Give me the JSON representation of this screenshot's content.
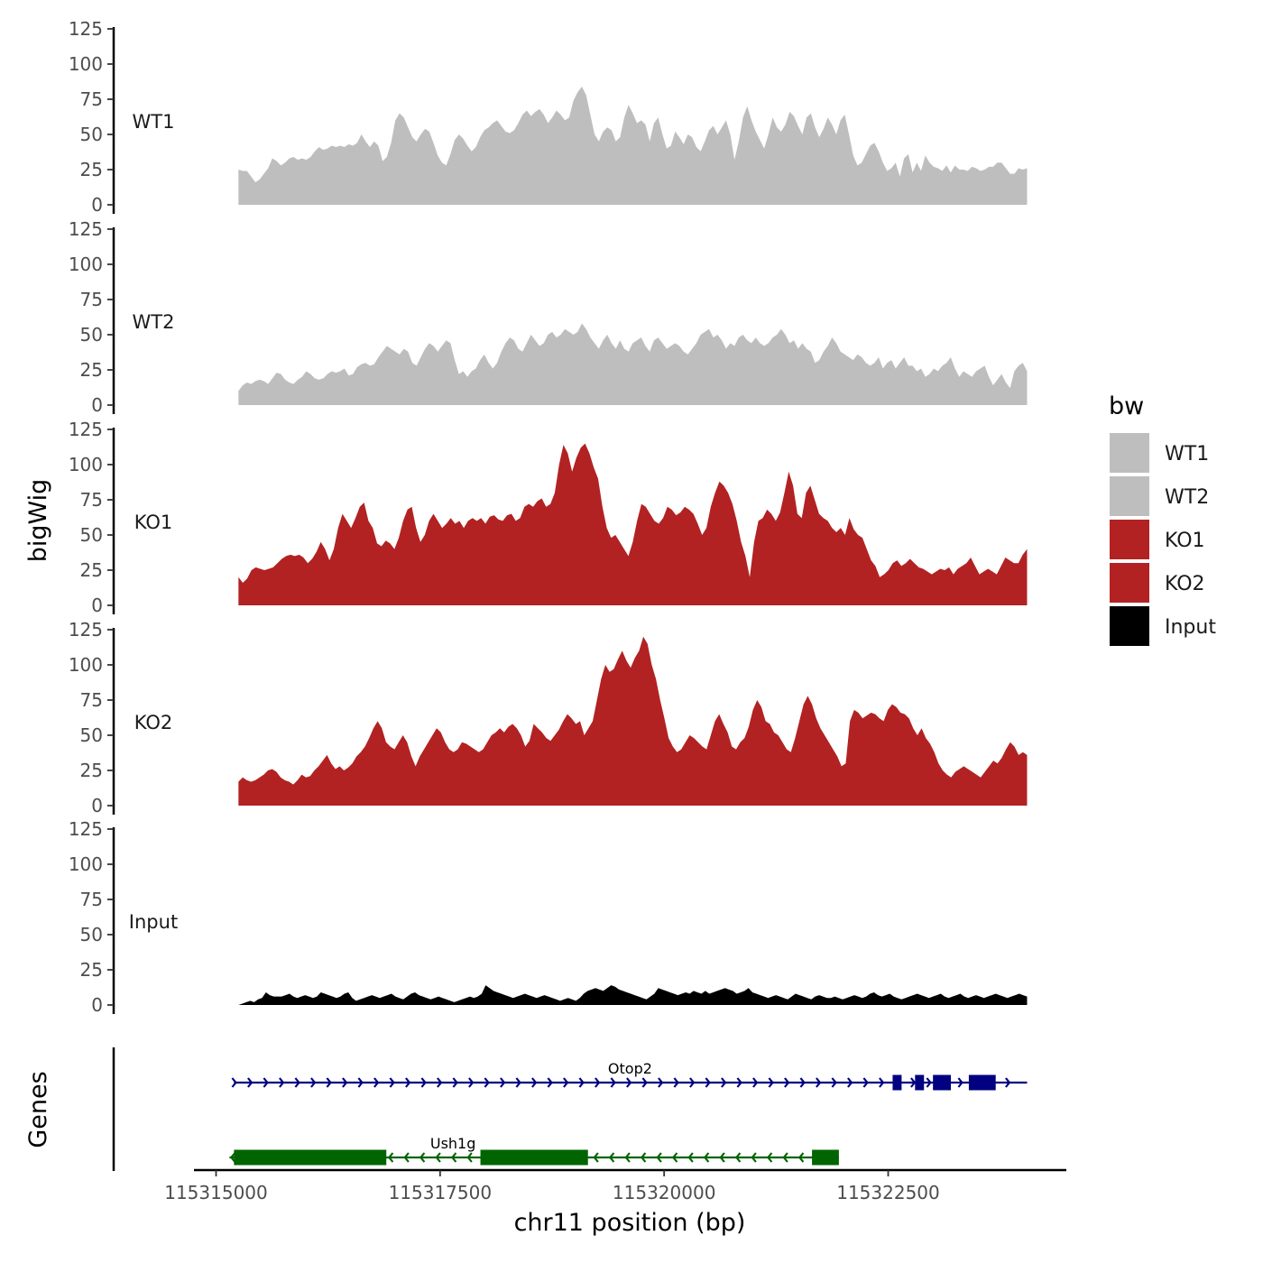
{
  "chart_data": {
    "type": "area",
    "chromosome": "chr11",
    "xlabel": "chr11 position (bp)",
    "ylabel": "bigWig",
    "genes_label": "Genes",
    "xlim": [
      115314500,
      115324200
    ],
    "region": [
      115315250,
      115324050
    ],
    "x_ticks": [
      115315000,
      115317500,
      115320000,
      115322500
    ],
    "x_tick_labels": [
      "115315000",
      "115317500",
      "115320000",
      "115322500"
    ],
    "ylim": [
      0,
      125
    ],
    "y_ticks": [
      0,
      25,
      50,
      75,
      100,
      125
    ],
    "y_tick_labels": [
      "0",
      "25",
      "50",
      "75",
      "100",
      "125"
    ],
    "legend": {
      "title": "bw",
      "entries": [
        {
          "label": "WT1",
          "color": "#BEBEBE"
        },
        {
          "label": "WT2",
          "color": "#BEBEBE"
        },
        {
          "label": "KO1",
          "color": "#B22222"
        },
        {
          "label": "KO2",
          "color": "#B22222"
        },
        {
          "label": "Input",
          "color": "#000000"
        }
      ]
    },
    "series": [
      {
        "name": "WT1",
        "color": "#BEBEBE",
        "values": [
          25,
          24,
          24,
          20,
          16,
          18,
          22,
          26,
          33,
          31,
          28,
          30,
          33,
          34,
          32,
          33,
          32,
          34,
          38,
          41,
          39,
          40,
          42,
          41,
          42,
          41,
          43,
          42,
          44,
          50,
          45,
          41,
          45,
          42,
          31,
          34,
          44,
          60,
          65,
          62,
          55,
          48,
          45,
          50,
          54,
          52,
          44,
          35,
          30,
          28,
          36,
          46,
          50,
          47,
          42,
          38,
          41,
          48,
          53,
          55,
          58,
          60,
          56,
          52,
          51,
          53,
          58,
          64,
          67,
          63,
          66,
          68,
          64,
          58,
          62,
          67,
          64,
          60,
          62,
          74,
          80,
          84,
          78,
          64,
          50,
          45,
          52,
          55,
          53,
          45,
          48,
          62,
          71,
          65,
          58,
          60,
          57,
          45,
          58,
          62,
          50,
          40,
          42,
          52,
          48,
          43,
          50,
          48,
          41,
          38,
          45,
          53,
          56,
          50,
          55,
          60,
          50,
          32,
          45,
          62,
          70,
          60,
          52,
          46,
          40,
          50,
          62,
          55,
          52,
          57,
          66,
          63,
          56,
          50,
          62,
          65,
          55,
          48,
          54,
          62,
          57,
          50,
          60,
          64,
          50,
          35,
          28,
          30,
          36,
          42,
          44,
          38,
          30,
          24,
          26,
          30,
          20,
          33,
          36,
          23,
          30,
          24,
          35,
          30,
          27,
          26,
          24,
          28,
          23,
          28,
          25,
          25,
          24,
          27,
          26,
          24,
          25,
          27,
          27,
          30,
          30,
          26,
          22,
          22,
          26,
          25,
          26
        ]
      },
      {
        "name": "WT2",
        "color": "#BEBEBE",
        "values": [
          10,
          14,
          16,
          15,
          17,
          18,
          17,
          15,
          19,
          23,
          22,
          18,
          16,
          15,
          18,
          20,
          24,
          22,
          19,
          18,
          19,
          22,
          24,
          23,
          24,
          26,
          21,
          22,
          27,
          29,
          30,
          28,
          29,
          34,
          38,
          42,
          40,
          38,
          36,
          40,
          38,
          30,
          28,
          34,
          40,
          44,
          42,
          38,
          42,
          46,
          44,
          32,
          22,
          24,
          20,
          24,
          26,
          32,
          36,
          30,
          26,
          30,
          38,
          44,
          48,
          46,
          40,
          38,
          44,
          50,
          46,
          42,
          44,
          50,
          52,
          48,
          50,
          54,
          52,
          50,
          52,
          58,
          54,
          48,
          44,
          40,
          46,
          50,
          44,
          40,
          46,
          40,
          38,
          44,
          46,
          48,
          42,
          38,
          46,
          48,
          44,
          40,
          42,
          44,
          42,
          38,
          36,
          40,
          44,
          50,
          52,
          54,
          48,
          50,
          46,
          40,
          44,
          42,
          48,
          50,
          46,
          44,
          48,
          44,
          42,
          44,
          48,
          50,
          54,
          50,
          44,
          46,
          40,
          44,
          40,
          38,
          30,
          32,
          38,
          42,
          48,
          44,
          38,
          36,
          34,
          32,
          36,
          34,
          30,
          28,
          30,
          34,
          26,
          30,
          32,
          26,
          30,
          34,
          28,
          28,
          24,
          26,
          20,
          22,
          26,
          24,
          28,
          30,
          34,
          26,
          20,
          24,
          22,
          20,
          24,
          26,
          28,
          20,
          14,
          18,
          22,
          16,
          12,
          24,
          28,
          30,
          24
        ]
      },
      {
        "name": "KO1",
        "color": "#B22222",
        "values": [
          20,
          16,
          19,
          25,
          27,
          26,
          25,
          26,
          27,
          30,
          33,
          35,
          36,
          35,
          36,
          34,
          30,
          33,
          38,
          45,
          40,
          32,
          40,
          55,
          65,
          60,
          55,
          62,
          70,
          73,
          60,
          55,
          44,
          42,
          46,
          44,
          40,
          48,
          60,
          68,
          70,
          55,
          45,
          50,
          60,
          65,
          60,
          55,
          58,
          62,
          58,
          60,
          55,
          60,
          62,
          60,
          62,
          58,
          63,
          64,
          61,
          60,
          64,
          65,
          60,
          62,
          70,
          72,
          70,
          74,
          76,
          70,
          72,
          80,
          100,
          114,
          108,
          95,
          105,
          112,
          115,
          108,
          98,
          90,
          70,
          55,
          48,
          50,
          45,
          40,
          35,
          45,
          60,
          72,
          70,
          65,
          60,
          58,
          62,
          70,
          68,
          64,
          66,
          70,
          68,
          65,
          58,
          50,
          55,
          70,
          80,
          88,
          85,
          80,
          72,
          60,
          45,
          35,
          20,
          45,
          60,
          62,
          68,
          65,
          60,
          66,
          80,
          95,
          85,
          65,
          62,
          80,
          85,
          75,
          65,
          62,
          60,
          55,
          52,
          55,
          50,
          62,
          54,
          50,
          48,
          40,
          32,
          28,
          20,
          22,
          25,
          30,
          32,
          28,
          30,
          33,
          30,
          27,
          26,
          24,
          22,
          24,
          26,
          25,
          27,
          22,
          26,
          28,
          30,
          34,
          28,
          22,
          24,
          26,
          24,
          22,
          28,
          34,
          32,
          30,
          30,
          36,
          40
        ]
      },
      {
        "name": "KO2",
        "color": "#B22222",
        "values": [
          17,
          20,
          18,
          17,
          18,
          20,
          22,
          25,
          26,
          24,
          20,
          18,
          17,
          15,
          18,
          22,
          20,
          21,
          25,
          28,
          32,
          36,
          30,
          26,
          28,
          25,
          27,
          30,
          35,
          38,
          42,
          48,
          55,
          60,
          55,
          45,
          42,
          40,
          45,
          50,
          45,
          35,
          28,
          35,
          40,
          45,
          50,
          55,
          52,
          45,
          40,
          38,
          40,
          45,
          44,
          42,
          40,
          38,
          40,
          45,
          50,
          52,
          55,
          52,
          56,
          58,
          55,
          50,
          42,
          46,
          58,
          55,
          52,
          48,
          46,
          50,
          54,
          60,
          65,
          62,
          58,
          60,
          50,
          55,
          60,
          75,
          90,
          100,
          95,
          97,
          104,
          110,
          103,
          98,
          105,
          110,
          120,
          115,
          100,
          90,
          75,
          62,
          48,
          42,
          38,
          40,
          45,
          50,
          48,
          45,
          42,
          40,
          50,
          60,
          65,
          58,
          52,
          42,
          40,
          45,
          48,
          56,
          68,
          75,
          70,
          60,
          58,
          52,
          50,
          45,
          40,
          38,
          48,
          60,
          72,
          78,
          72,
          62,
          55,
          50,
          45,
          40,
          35,
          28,
          30,
          60,
          68,
          66,
          62,
          64,
          66,
          65,
          62,
          60,
          68,
          72,
          70,
          66,
          65,
          62,
          55,
          50,
          55,
          48,
          44,
          38,
          30,
          25,
          22,
          20,
          24,
          26,
          28,
          26,
          24,
          22,
          20,
          24,
          28,
          32,
          30,
          34,
          40,
          45,
          42,
          36,
          38,
          36
        ]
      },
      {
        "name": "Input",
        "color": "#000000",
        "values": [
          0,
          1,
          2,
          3,
          2,
          4,
          5,
          9,
          7,
          6,
          6,
          6,
          7,
          8,
          6,
          5,
          6,
          7,
          6,
          5,
          6,
          9,
          8,
          7,
          6,
          5,
          6,
          8,
          9,
          5,
          3,
          4,
          5,
          6,
          7,
          6,
          5,
          6,
          7,
          8,
          6,
          5,
          4,
          6,
          8,
          9,
          7,
          6,
          5,
          4,
          5,
          6,
          5,
          4,
          3,
          2,
          3,
          4,
          5,
          6,
          5,
          6,
          8,
          14,
          12,
          10,
          9,
          8,
          7,
          6,
          5,
          6,
          7,
          8,
          7,
          6,
          5,
          6,
          7,
          6,
          5,
          4,
          3,
          4,
          5,
          4,
          3,
          5,
          8,
          10,
          11,
          12,
          11,
          10,
          12,
          14,
          13,
          11,
          10,
          9,
          8,
          7,
          6,
          5,
          4,
          6,
          8,
          12,
          11,
          10,
          9,
          8,
          7,
          8,
          9,
          8,
          10,
          9,
          8,
          10,
          8,
          9,
          10,
          11,
          12,
          11,
          10,
          8,
          9,
          10,
          12,
          9,
          8,
          7,
          6,
          5,
          6,
          7,
          6,
          5,
          4,
          6,
          8,
          7,
          6,
          5,
          4,
          6,
          7,
          6,
          5,
          5,
          6,
          5,
          4,
          5,
          6,
          7,
          6,
          5,
          6,
          8,
          9,
          7,
          6,
          7,
          8,
          6,
          5,
          4,
          5,
          6,
          7,
          8,
          7,
          6,
          5,
          6,
          7,
          8,
          6,
          5,
          6,
          7,
          8,
          6,
          5,
          6,
          7,
          6,
          5,
          6,
          7,
          8,
          7,
          6,
          5,
          6,
          7,
          8,
          7,
          6
        ]
      }
    ],
    "genes": [
      {
        "name": "Otop2",
        "strand": "+",
        "color": "#000080",
        "start": 115315150,
        "end": 115324050,
        "exons": [
          [
            115322550,
            115322650
          ],
          [
            115322800,
            115322900
          ],
          [
            115323000,
            115323200
          ],
          [
            115323400,
            115323700
          ]
        ]
      },
      {
        "name": "Ush1g",
        "strand": "-",
        "color": "#006400",
        "start": 115315150,
        "end": 115321950,
        "exons": [
          [
            115315200,
            115316900
          ],
          [
            115317950,
            115319150
          ],
          [
            115321650,
            115321950
          ]
        ]
      }
    ]
  }
}
